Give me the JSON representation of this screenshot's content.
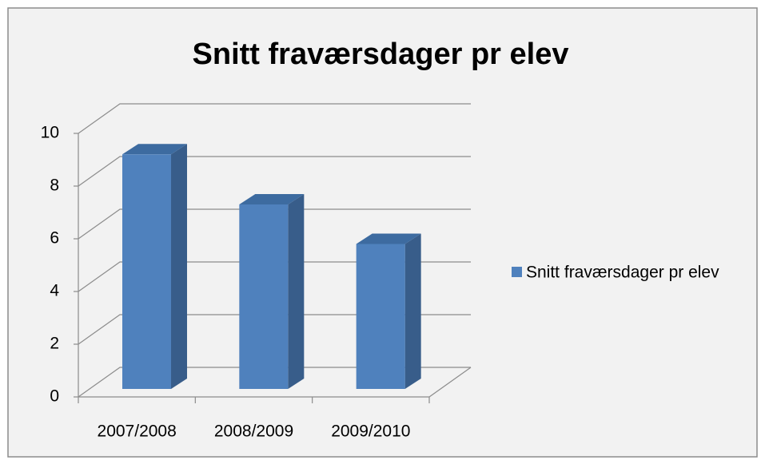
{
  "chart_data": {
    "type": "bar3d",
    "title": "Snitt fraværsdager pr elev",
    "categories": [
      "2007/2008",
      "2008/2009",
      "2009/2010"
    ],
    "series": [
      {
        "name": "Snitt fraværsdager pr elev",
        "color": "#4f81bd",
        "values": [
          8.9,
          7.0,
          5.5
        ]
      }
    ],
    "ylim": [
      0,
      10
    ],
    "yticks": [
      0,
      2,
      4,
      6,
      8,
      10
    ],
    "grid": true,
    "legend": "right"
  }
}
